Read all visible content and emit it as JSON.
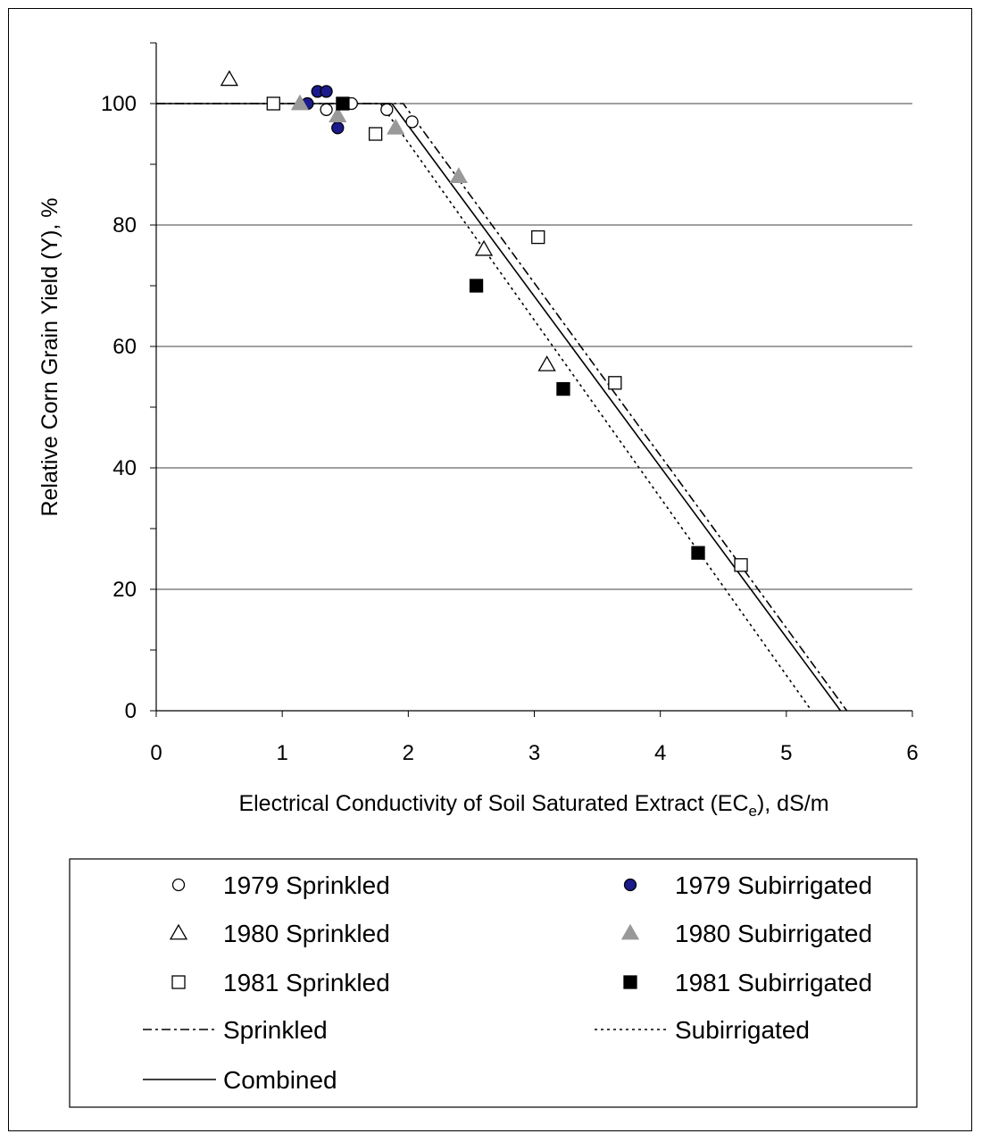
{
  "chart_data": {
    "type": "scatter",
    "xlabel_main": "Electrical Conductivity of Soil Saturated Extract (EC",
    "xlabel_sub": "e",
    "xlabel_tail": "), dS/m",
    "ylabel": "Relative Corn Grain Yield (Y), %",
    "xlim": [
      0,
      6
    ],
    "ylim": [
      0,
      110
    ],
    "xticks": [
      "0",
      "1",
      "2",
      "3",
      "4",
      "5",
      "6"
    ],
    "yticks": [
      "0",
      "20",
      "40",
      "60",
      "80",
      "100"
    ],
    "grid": "horizontal",
    "legend_position": "bottom",
    "series": [
      {
        "name": "1979 Sprinkled",
        "marker": "circle-open",
        "color": "#000000",
        "points": [
          [
            1.35,
            99
          ],
          [
            1.55,
            100
          ],
          [
            1.83,
            99
          ],
          [
            2.03,
            97
          ]
        ]
      },
      {
        "name": "1979 Subirrigated",
        "marker": "circle-filled",
        "color": "#1a1a8c",
        "points": [
          [
            1.2,
            100
          ],
          [
            1.28,
            102
          ],
          [
            1.35,
            102
          ],
          [
            1.44,
            96
          ]
        ]
      },
      {
        "name": "1980 Sprinkled",
        "marker": "triangle-open",
        "color": "#000000",
        "points": [
          [
            0.58,
            104
          ],
          [
            2.6,
            76
          ],
          [
            3.1,
            57
          ]
        ]
      },
      {
        "name": "1980 Subirrigated",
        "marker": "triangle-filled",
        "color": "#999999",
        "points": [
          [
            1.14,
            100
          ],
          [
            1.44,
            98
          ],
          [
            1.9,
            96
          ],
          [
            2.4,
            88
          ]
        ]
      },
      {
        "name": "1981 Sprinkled",
        "marker": "square-open",
        "color": "#000000",
        "points": [
          [
            0.93,
            100
          ],
          [
            1.74,
            95
          ],
          [
            3.03,
            78
          ],
          [
            3.64,
            54
          ],
          [
            4.64,
            24
          ]
        ]
      },
      {
        "name": "1981 Subirrigated",
        "marker": "square-filled",
        "color": "#000000",
        "points": [
          [
            1.48,
            100
          ],
          [
            2.54,
            70
          ],
          [
            3.23,
            53
          ],
          [
            4.3,
            26
          ]
        ]
      }
    ],
    "lines": [
      {
        "name": "Sprinkled",
        "dash": "dashdot",
        "points": [
          [
            0,
            100
          ],
          [
            1.96,
            100
          ],
          [
            5.48,
            0
          ]
        ]
      },
      {
        "name": "Subirrigated",
        "dash": "dotted",
        "points": [
          [
            0,
            100
          ],
          [
            1.78,
            100
          ],
          [
            5.2,
            0
          ]
        ]
      },
      {
        "name": "Combined",
        "dash": "solid",
        "points": [
          [
            0,
            100
          ],
          [
            1.87,
            100
          ],
          [
            5.43,
            0
          ]
        ]
      }
    ]
  }
}
